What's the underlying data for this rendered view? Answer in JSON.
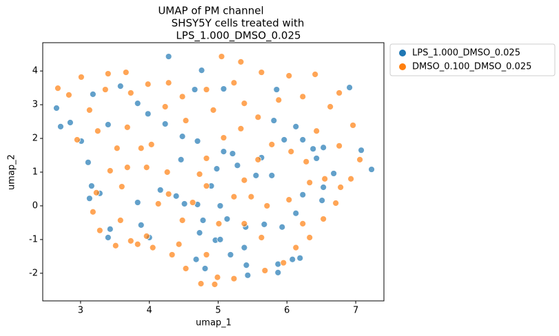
{
  "chart_data": {
    "type": "scatter",
    "title": [
      "UMAP of PM channel",
      "SHSY5Y cells treated with",
      "LPS_1.000_DMSO_0.025"
    ],
    "x_label": "umap_1",
    "y_label": "umap_2",
    "xlim": [
      2.45,
      7.41
    ],
    "ylim": [
      -2.82,
      4.84
    ],
    "xticks": [
      3,
      4,
      5,
      6,
      7
    ],
    "yticks": [
      -2,
      -1,
      0,
      1,
      2,
      3,
      4
    ],
    "legend_position": "outside upper right",
    "series": [
      {
        "name": "LPS_1.000_DMSO_0.025",
        "color": "#1f77b4",
        "x": [
          4.28,
          4.76,
          5.08,
          4.66,
          5.85,
          6.91,
          2.65,
          2.71,
          2.85,
          3.4,
          3.01,
          3.11,
          3.16,
          3.28,
          3.13,
          3.43,
          3.4,
          3.83,
          3.88,
          4.0,
          4.16,
          4.39,
          4.46,
          4.51,
          4.7,
          4.73,
          4.68,
          4.81,
          4.96,
          5.03,
          5.18,
          5.38,
          5.41,
          5.87,
          5.87,
          5.43,
          5.13,
          5.4,
          5.67,
          5.93,
          6.08,
          6.19,
          6.13,
          6.23,
          6.51,
          6.53,
          6.68,
          7.08,
          7.23,
          6.53,
          6.38,
          6.23,
          6.13,
          5.81,
          5.96,
          5.63,
          5.28,
          5.08,
          4.7,
          4.48,
          4.23,
          3.83,
          3.58,
          3.18,
          3.98,
          5.21,
          4.98,
          4.9,
          5.03,
          4.78,
          6.43,
          5.78,
          5.55
        ],
        "values": [
          4.43,
          4.02,
          3.47,
          3.45,
          3.45,
          3.51,
          2.9,
          2.35,
          2.47,
          2.41,
          1.92,
          1.29,
          0.59,
          0.37,
          0.22,
          -0.69,
          -0.94,
          0.1,
          -0.57,
          -0.94,
          0.47,
          0.29,
          1.37,
          0.06,
          0.04,
          -0.8,
          -1.59,
          -1.86,
          -1.02,
          -1.0,
          -1.45,
          -1.24,
          -1.76,
          -1.73,
          -1.98,
          -2.06,
          -0.39,
          -0.63,
          -0.55,
          -0.63,
          -1.59,
          -1.55,
          -0.22,
          0.33,
          0.16,
          0.55,
          0.96,
          1.65,
          1.08,
          1.73,
          1.69,
          1.96,
          2.35,
          2.53,
          1.96,
          1.43,
          1.2,
          1.61,
          1.92,
          2.06,
          2.43,
          3.04,
          3.55,
          3.31,
          2.73,
          1.55,
          1.1,
          0.59,
          0.0,
          -0.43,
          1.41,
          0.9,
          0.9
        ]
      },
      {
        "name": "DMSO_0.100_DMSO_0.025",
        "color": "#ff7f0e",
        "x": [
          2.67,
          2.83,
          2.95,
          3.13,
          3.01,
          3.4,
          3.66,
          3.98,
          4.28,
          4.48,
          4.83,
          5.05,
          5.33,
          5.63,
          6.03,
          6.41,
          6.76,
          6.63,
          6.96,
          6.76,
          7.06,
          6.93,
          6.78,
          6.71,
          6.53,
          6.33,
          6.13,
          5.95,
          5.68,
          5.23,
          4.99,
          4.95,
          4.75,
          4.53,
          4.33,
          4.05,
          3.96,
          3.73,
          3.51,
          3.28,
          3.18,
          3.23,
          3.43,
          3.6,
          3.68,
          3.96,
          3.88,
          3.53,
          3.25,
          3.68,
          4.03,
          4.26,
          4.28,
          4.48,
          4.43,
          4.83,
          5.01,
          5.23,
          5.38,
          5.58,
          5.78,
          6.06,
          6.28,
          6.33,
          6.03,
          5.71,
          5.48,
          4.83,
          4.73,
          4.83,
          5.08,
          5.33,
          5.58,
          5.88,
          6.23,
          6.43,
          5.38,
          5.23,
          4.93,
          4.53,
          4.23,
          3.73,
          3.36,
          3.83,
          3.58,
          4.13,
          4.63,
          5.38,
          5.63,
          6.23,
          6.55
        ],
        "values": [
          3.49,
          3.29,
          1.96,
          2.84,
          3.82,
          3.92,
          3.96,
          3.61,
          3.65,
          3.24,
          3.45,
          4.43,
          4.27,
          3.96,
          3.86,
          3.9,
          3.35,
          2.94,
          2.39,
          1.78,
          1.37,
          0.8,
          0.55,
          0.08,
          -0.39,
          -0.94,
          -1.24,
          -1.69,
          -1.92,
          -2.16,
          -2.12,
          -2.33,
          -2.31,
          -1.86,
          -1.45,
          -1.24,
          -0.9,
          -1.04,
          -1.18,
          -0.73,
          -0.18,
          0.39,
          1.04,
          0.57,
          1.14,
          1.14,
          1.71,
          1.71,
          2.22,
          2.33,
          1.82,
          1.0,
          0.35,
          -0.43,
          -1.14,
          -1.45,
          -0.53,
          0.27,
          0.76,
          1.37,
          1.82,
          1.61,
          1.31,
          0.69,
          0.18,
          0.0,
          0.27,
          0.59,
          0.94,
          1.41,
          2.02,
          2.29,
          2.63,
          3.14,
          3.24,
          2.22,
          3.04,
          3.65,
          2.84,
          2.53,
          2.94,
          3.35,
          3.45,
          -1.14,
          -0.43,
          0.06,
          0.1,
          -0.53,
          -0.94,
          -0.53,
          0.8
        ]
      }
    ]
  }
}
